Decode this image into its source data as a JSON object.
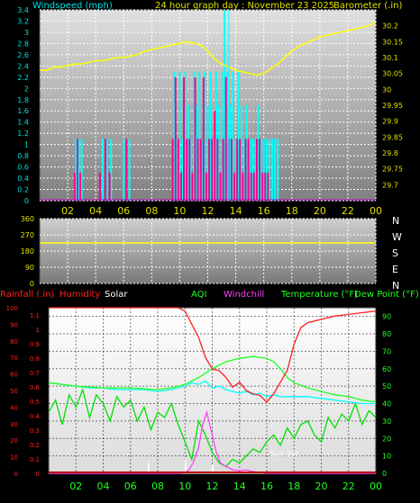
{
  "chart_data": [
    {
      "type": "line",
      "title": "24 hour graph day : November 23 2025",
      "ylabel": "Windspeed (mph)",
      "y2label": "Barometer (.in)",
      "x_ticks": [
        "02",
        "04",
        "06",
        "08",
        "10",
        "12",
        "14",
        "16",
        "18",
        "20",
        "22",
        "00"
      ],
      "ylim": [
        0,
        3.4
      ],
      "y_ticks": [
        "0",
        "0.2",
        "0.4",
        "0.6",
        "0.8",
        "1",
        "1.2",
        "1.4",
        "1.6",
        "1.8",
        "2",
        "2.2",
        "2.4",
        "2.6",
        "2.8",
        "3",
        "3.2",
        "3.4"
      ],
      "y2lim": [
        29.65,
        30.25
      ],
      "y2_ticks": [
        "29.7",
        "29.75",
        "29.8",
        "29.85",
        "29.9",
        "29.95",
        "30",
        "30.05",
        "30.1",
        "30.15",
        "30.2"
      ],
      "grid": true,
      "series": [
        {
          "color": "#ffff00",
          "axis": "right",
          "x": [
            0,
            0.5,
            1,
            1.5,
            2,
            2.5,
            3,
            3.5,
            4,
            4.5,
            5,
            5.5,
            6,
            6.5,
            7,
            7.5,
            8,
            8.5,
            9,
            9.5,
            10,
            10.5,
            11,
            11.5,
            12,
            12.5,
            13,
            13.5,
            14,
            14.5,
            15,
            15.5,
            16,
            16.5,
            17,
            17.5,
            18,
            18.5,
            19,
            19.5,
            20,
            20.5,
            21,
            21.5,
            22,
            22.5,
            23,
            23.5,
            24
          ],
          "values": [
            30.06,
            30.06,
            30.07,
            30.07,
            30.075,
            30.08,
            30.08,
            30.085,
            30.09,
            30.09,
            30.095,
            30.1,
            30.1,
            30.105,
            30.11,
            30.12,
            30.125,
            30.13,
            30.135,
            30.14,
            30.145,
            30.15,
            30.145,
            30.14,
            30.12,
            30.095,
            30.08,
            30.07,
            30.06,
            30.055,
            30.05,
            30.045,
            30.05,
            30.065,
            30.08,
            30.1,
            30.12,
            30.135,
            30.145,
            30.155,
            30.165,
            30.17,
            30.175,
            30.18,
            30.185,
            30.19,
            30.195,
            30.2,
            30.21
          ]
        },
        {
          "color": "#ff0080",
          "type": "bar",
          "x": [
            2.5,
            2.7,
            2.9,
            4.3,
            4.7,
            5.0,
            6.2,
            9.5,
            9.7,
            9.9,
            10.1,
            10.3,
            10.5,
            10.7,
            10.9,
            11.1,
            11.3,
            11.5,
            11.7,
            11.9,
            12.1,
            12.3,
            12.5,
            12.7,
            12.9,
            13.1,
            13.3,
            13.5,
            13.7,
            13.9,
            14.1,
            14.3,
            14.5,
            14.7,
            14.9,
            15.1,
            15.3,
            15.5,
            15.7,
            15.9,
            16.1,
            16.3
          ],
          "values": [
            0.5,
            1.1,
            0.5,
            0.5,
            1.1,
            0.5,
            1.1,
            1.1,
            2.2,
            1.1,
            0.5,
            2.2,
            1.1,
            1.1,
            0.5,
            2.2,
            1.1,
            1.1,
            2.2,
            0.5,
            1.1,
            1.1,
            1.6,
            1.1,
            0.5,
            1.1,
            2.2,
            1.1,
            1.1,
            0.5,
            1.1,
            1.1,
            0.5,
            1.1,
            1.1,
            0.5,
            0.5,
            1.1,
            1.1,
            0.5,
            0.5,
            0.5
          ]
        },
        {
          "color": "#00ffff",
          "type": "bar",
          "x": [
            2.6,
            2.8,
            3.0,
            4.5,
            4.8,
            5.1,
            6.0,
            6.4,
            9.6,
            9.8,
            10.0,
            10.2,
            10.4,
            10.6,
            10.8,
            11.0,
            11.2,
            11.4,
            11.6,
            11.8,
            12.0,
            12.2,
            12.4,
            12.6,
            12.8,
            13.0,
            13.2,
            13.4,
            13.6,
            13.8,
            14.0,
            14.2,
            14.4,
            14.6,
            14.8,
            15.0,
            15.2,
            15.4,
            15.6,
            15.8,
            16.0,
            16.2,
            16.4,
            16.6,
            16.8,
            17.0
          ],
          "values": [
            1.1,
            1.1,
            1.1,
            1.1,
            1.1,
            1.1,
            1.1,
            1.1,
            2.3,
            1.1,
            2.3,
            1.1,
            2.3,
            1.7,
            1.1,
            2.3,
            1.7,
            2.3,
            1.1,
            2.3,
            1.7,
            2.3,
            1.1,
            2.3,
            1.7,
            2.3,
            3.4,
            2.3,
            1.7,
            2.3,
            1.1,
            2.3,
            1.7,
            1.1,
            1.7,
            1.1,
            1.1,
            1.1,
            1.7,
            1.1,
            1.1,
            1.1,
            1.1,
            1.1,
            1.1,
            1.1
          ]
        }
      ]
    },
    {
      "type": "line",
      "y_ticks": [
        "360",
        "270",
        "180",
        "90",
        "0"
      ],
      "ylim": [
        0,
        360
      ],
      "direction_labels": [
        "N",
        "W",
        "S",
        "E",
        "N"
      ],
      "series": [
        {
          "color": "#ffff00",
          "x": [
            0,
            24
          ],
          "values": [
            225,
            225
          ]
        }
      ]
    },
    {
      "type": "line",
      "legend": [
        "Rainfall (.in)",
        "Humidity",
        "Solar",
        "AQI",
        "Windchill",
        "Temperature (°F)",
        "Dew Point (°F)"
      ],
      "x_ticks": [
        "02",
        "04",
        "06",
        "08",
        "10",
        "12",
        "14",
        "16",
        "18",
        "20",
        "22",
        "00"
      ],
      "y_left_ticks": [
        "0",
        "10",
        "20",
        "30",
        "40",
        "50",
        "60",
        "70",
        "80",
        "90",
        "100"
      ],
      "y_rain_ticks": [
        "0",
        "0.1",
        "0.2",
        "0.3",
        "0.4",
        "0.5",
        "0.6",
        "0.7",
        "0.8",
        "0.9",
        "1",
        "1.1"
      ],
      "y_right_ticks": [
        "0",
        "10",
        "20",
        "30",
        "40",
        "50",
        "60",
        "70",
        "80",
        "90"
      ],
      "annotation": "Sun Set",
      "series": [
        {
          "name": "Humidity",
          "color": "#ff2020",
          "x": [
            0,
            1,
            2,
            3,
            4,
            5,
            6,
            7,
            8,
            9,
            9.5,
            10,
            10.5,
            11,
            11.5,
            12,
            12.5,
            13,
            13.5,
            14,
            14.5,
            15,
            15.5,
            16,
            16.5,
            17,
            17.5,
            18,
            18.5,
            19,
            20,
            21,
            22,
            23,
            24
          ],
          "values": [
            100,
            100,
            100,
            100,
            100,
            100,
            100,
            100,
            100,
            100,
            100,
            98,
            90,
            82,
            70,
            63,
            62,
            58,
            52,
            55,
            50,
            48,
            47,
            43,
            48,
            55,
            62,
            78,
            88,
            91,
            93,
            95,
            96,
            97,
            98
          ]
        },
        {
          "name": "Temperature (°F)",
          "color": "#20ff20",
          "x": [
            0,
            2,
            4,
            6,
            8,
            9,
            10,
            11,
            12,
            13,
            14,
            15,
            16,
            16.5,
            17,
            17.5,
            18,
            19,
            20,
            21,
            22,
            23,
            24
          ],
          "values": [
            52,
            50,
            49,
            49,
            48,
            49,
            51,
            55,
            60,
            64,
            66,
            67,
            66,
            64,
            60,
            55,
            52,
            49,
            47,
            45,
            44,
            42,
            41
          ]
        },
        {
          "name": "Dew Point (°F)",
          "color": "#00ffff",
          "x": [
            0,
            1,
            2,
            3,
            4,
            5,
            6,
            7,
            8,
            9,
            10,
            10.5,
            11,
            11.5,
            12,
            12.5,
            13,
            13.5,
            14,
            14.5,
            15,
            15.5,
            16,
            16.5,
            17,
            18,
            19,
            20,
            21,
            22,
            23,
            24
          ],
          "values": [
            52,
            51,
            50,
            49,
            49,
            48,
            48,
            48,
            47,
            48,
            50,
            52,
            51,
            53,
            49,
            50,
            48,
            47,
            46,
            47,
            45,
            46,
            44,
            45,
            44,
            44,
            44,
            43,
            42,
            41,
            40,
            40
          ]
        },
        {
          "name": "AQI",
          "color": "#00e000",
          "x": [
            0,
            0.5,
            1,
            1.5,
            2,
            2.5,
            3,
            3.5,
            4,
            4.5,
            5,
            5.5,
            6,
            6.5,
            7,
            7.5,
            8,
            8.5,
            9,
            9.5,
            10,
            10.5,
            11,
            11.5,
            12,
            12.5,
            13,
            13.5,
            14,
            14.5,
            15,
            15.5,
            16,
            16.5,
            17,
            17.5,
            18,
            18.5,
            19,
            19.5,
            20,
            20.5,
            21,
            21.5,
            22,
            22.5,
            23,
            23.5,
            24
          ],
          "values": [
            35,
            42,
            28,
            45,
            38,
            48,
            32,
            45,
            40,
            30,
            44,
            38,
            42,
            30,
            38,
            25,
            35,
            32,
            40,
            28,
            18,
            8,
            30,
            22,
            12,
            6,
            4,
            8,
            6,
            10,
            14,
            12,
            18,
            22,
            16,
            26,
            20,
            28,
            30,
            22,
            18,
            32,
            26,
            34,
            30,
            40,
            28,
            36,
            32
          ]
        },
        {
          "name": "Solar",
          "color": "#ffffff",
          "x": [
            0,
            7.3,
            7.32,
            7.4,
            10,
            10.02,
            10.1,
            12,
            12.02,
            12.1,
            24
          ],
          "values": [
            0,
            0,
            6,
            0,
            0,
            8,
            0,
            0,
            5,
            0,
            0
          ]
        },
        {
          "name": "Windchill",
          "color": "#ff40ff",
          "x": [
            0,
            9.5,
            10,
            10.3,
            10.6,
            11,
            11.3,
            11.6,
            12,
            12.3,
            12.6,
            13,
            13.5,
            14,
            14.5,
            15,
            15.5,
            16,
            24
          ],
          "values": [
            0,
            0,
            0.5,
            2,
            6,
            15,
            28,
            35,
            22,
            12,
            6,
            4,
            2,
            1.5,
            2,
            1,
            0.5,
            0,
            0
          ]
        },
        {
          "name": "Rainfall (.in)",
          "color": "#c00000",
          "x": [
            0,
            24
          ],
          "values": [
            0,
            0
          ]
        }
      ]
    }
  ]
}
